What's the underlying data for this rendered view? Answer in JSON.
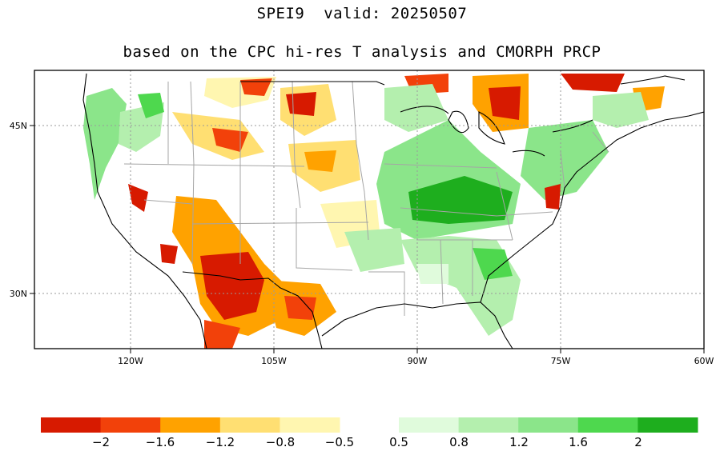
{
  "title": {
    "line1": "SPEI9  valid: 20250507",
    "line2": "based on the CPC hi-res T analysis and CMORPH PRCP"
  },
  "axes": {
    "x_ticks": [
      "120W",
      "105W",
      "90W",
      "75W",
      "60W"
    ],
    "y_ticks": [
      "45N",
      "30N"
    ]
  },
  "colorbar": {
    "dry": {
      "colors": [
        "#d71a00",
        "#f2410a",
        "#ffa200",
        "#ffdf72",
        "#fff6b0"
      ],
      "labels": [
        "−2",
        "−1.6",
        "−1.2",
        "−0.8",
        "−0.5"
      ]
    },
    "wet": {
      "colors": [
        "#e0fbdc",
        "#b4efae",
        "#8be58a",
        "#4ed84e",
        "#1eae1e"
      ],
      "labels": [
        "0.5",
        "0.8",
        "1.2",
        "1.6",
        "2"
      ]
    }
  },
  "map_colors": {
    "ocean": "#ffffff",
    "land": "#ffffff",
    "coast": "#000000",
    "state_lines": "#a5a5a5",
    "grid": "#9a9a9a"
  }
}
